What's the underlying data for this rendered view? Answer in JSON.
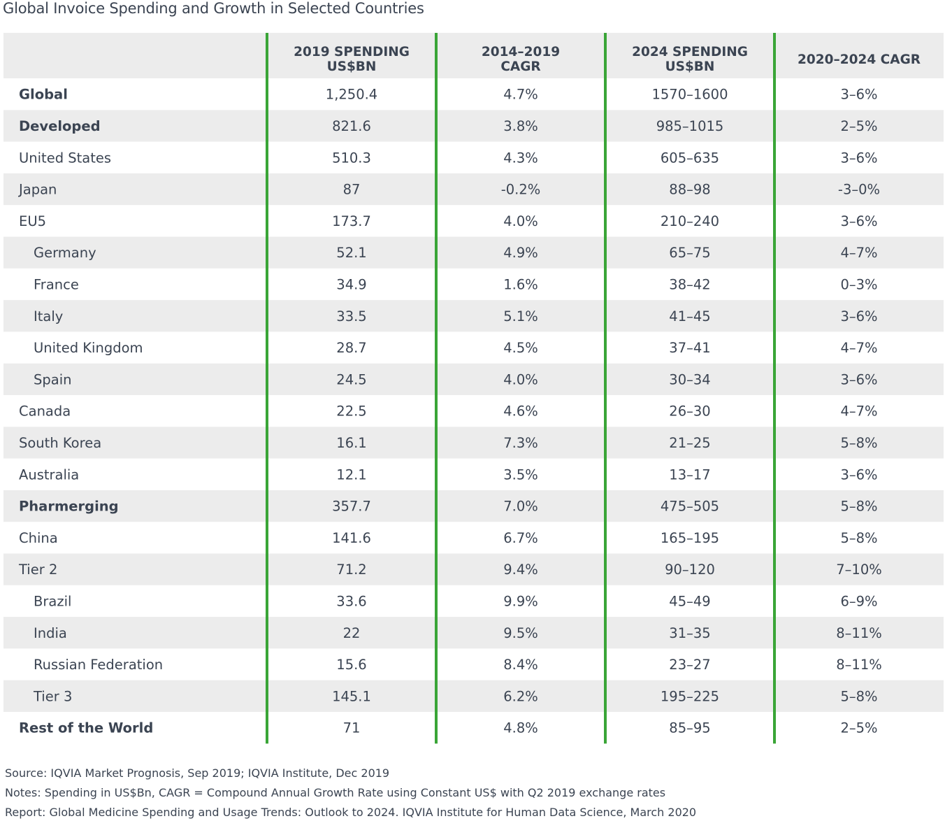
{
  "chart_data": {
    "type": "table",
    "title": "Global Invoice Spending and Growth in Selected Countries",
    "columns": [
      {
        "lines": [
          "",
          ""
        ]
      },
      {
        "lines": [
          "2019 SPENDING",
          "US$BN"
        ]
      },
      {
        "lines": [
          "2014–2019",
          "CAGR"
        ]
      },
      {
        "lines": [
          "2024 SPENDING",
          "US$BN"
        ]
      },
      {
        "lines": [
          "2020–2024 CAGR"
        ]
      }
    ],
    "rows": [
      {
        "label": "Global",
        "style": "bold",
        "indent": 0,
        "values": [
          "1,250.4",
          "4.7%",
          "1570–1600",
          "3–6%"
        ]
      },
      {
        "label": "Developed",
        "style": "bold",
        "indent": 0,
        "values": [
          "821.6",
          "3.8%",
          "985–1015",
          "2–5%"
        ]
      },
      {
        "label": "United States",
        "style": "normal",
        "indent": 0,
        "values": [
          "510.3",
          "4.3%",
          "605–635",
          "3–6%"
        ]
      },
      {
        "label": "Japan",
        "style": "normal",
        "indent": 0,
        "values": [
          "87",
          "-0.2%",
          "88–98",
          "-3–0%"
        ]
      },
      {
        "label": "EU5",
        "style": "normal",
        "indent": 0,
        "values": [
          "173.7",
          "4.0%",
          "210–240",
          "3–6%"
        ]
      },
      {
        "label": "Germany",
        "style": "normal",
        "indent": 1,
        "values": [
          "52.1",
          "4.9%",
          "65–75",
          "4–7%"
        ]
      },
      {
        "label": "France",
        "style": "normal",
        "indent": 1,
        "values": [
          "34.9",
          "1.6%",
          "38–42",
          "0–3%"
        ]
      },
      {
        "label": "Italy",
        "style": "normal",
        "indent": 1,
        "values": [
          "33.5",
          "5.1%",
          "41–45",
          "3–6%"
        ]
      },
      {
        "label": "United Kingdom",
        "style": "normal",
        "indent": 1,
        "values": [
          "28.7",
          "4.5%",
          "37–41",
          "4–7%"
        ]
      },
      {
        "label": "Spain",
        "style": "normal",
        "indent": 1,
        "values": [
          "24.5",
          "4.0%",
          "30–34",
          "3–6%"
        ]
      },
      {
        "label": "Canada",
        "style": "normal",
        "indent": 0,
        "values": [
          "22.5",
          "4.6%",
          "26–30",
          "4–7%"
        ]
      },
      {
        "label": "South Korea",
        "style": "normal",
        "indent": 0,
        "values": [
          "16.1",
          "7.3%",
          "21–25",
          "5–8%"
        ]
      },
      {
        "label": "Australia",
        "style": "normal",
        "indent": 0,
        "values": [
          "12.1",
          "3.5%",
          "13–17",
          "3–6%"
        ]
      },
      {
        "label": "Pharmerging",
        "style": "bold",
        "indent": 0,
        "values": [
          "357.7",
          "7.0%",
          "475–505",
          "5–8%"
        ]
      },
      {
        "label": "China",
        "style": "normal",
        "indent": 0,
        "values": [
          "141.6",
          "6.7%",
          "165–195",
          "5–8%"
        ]
      },
      {
        "label": "Tier 2",
        "style": "normal",
        "indent": 0,
        "values": [
          "71.2",
          "9.4%",
          "90–120",
          "7–10%"
        ]
      },
      {
        "label": "Brazil",
        "style": "normal",
        "indent": 1,
        "values": [
          "33.6",
          "9.9%",
          "45–49",
          "6–9%"
        ]
      },
      {
        "label": "India",
        "style": "normal",
        "indent": 1,
        "values": [
          "22",
          "9.5%",
          "31–35",
          "8–11%"
        ]
      },
      {
        "label": "Russian Federation",
        "style": "normal",
        "indent": 1,
        "values": [
          "15.6",
          "8.4%",
          "23–27",
          "8–11%"
        ]
      },
      {
        "label": "Tier 3",
        "style": "normal",
        "indent": 1,
        "values": [
          "145.1",
          "6.2%",
          "195–225",
          "5–8%"
        ]
      },
      {
        "label": "Rest of the World",
        "style": "bold",
        "indent": 0,
        "values": [
          "71",
          "4.8%",
          "85–95",
          "2–5%"
        ]
      }
    ],
    "notes": {
      "source": "Source: IQVIA Market Prognosis, Sep 2019; IQVIA Institute, Dec 2019",
      "notes": "Notes: Spending in US$Bn, CAGR = Compound Annual Growth Rate using Constant US$ with Q2 2019 exchange rates",
      "report": "Report: Global Medicine Spending and Usage Trends: Outlook to 2024. IQVIA Institute for Human Data Science, March 2020"
    },
    "colors": {
      "stripe": "#ececec",
      "divider": "#3aa537",
      "text": "#3b4452"
    }
  }
}
